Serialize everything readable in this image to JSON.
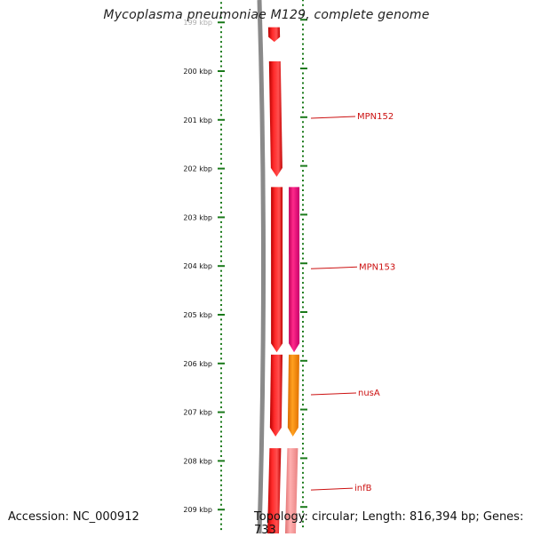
{
  "title": "Mycoplasma pneumoniae M129, complete genome",
  "accession": "Accession: NC_000912",
  "topology": "Topology: circular; Length: 816,394 bp; Genes: 733",
  "colors": {
    "backbone": "#8a8a8a",
    "tick": "#1a7a1a",
    "label": "#cc1111",
    "gene_red": "#ee1111",
    "gene_magenta": "#ee1177",
    "gene_orange": "#ff8800",
    "gene_pink": "#f08888"
  },
  "axis": {
    "unit": "kbp",
    "tick_labels": [
      "200 kbp",
      "201 kbp",
      "202 kbp",
      "203 kbp",
      "204 kbp",
      "205 kbp",
      "206 kbp",
      "207 kbp",
      "208 kbp",
      "209 kbp"
    ]
  },
  "genes": [
    {
      "label": "",
      "track": "inner",
      "color": "gene_red",
      "start_kbp": 199.1,
      "end_kbp": 199.4,
      "strand": "+"
    },
    {
      "label": "MPN152",
      "track": "inner",
      "color": "gene_red",
      "start_kbp": 199.8,
      "end_kbp": 202.17,
      "strand": "+"
    },
    {
      "label": "",
      "track": "inner",
      "color": "gene_red",
      "start_kbp": 202.38,
      "end_kbp": 205.77,
      "strand": "+"
    },
    {
      "label": "MPN153",
      "track": "outer",
      "color": "gene_magenta",
      "start_kbp": 202.38,
      "end_kbp": 205.77,
      "strand": "+"
    },
    {
      "label": "",
      "track": "inner",
      "color": "gene_red",
      "start_kbp": 205.82,
      "end_kbp": 207.5,
      "strand": "+"
    },
    {
      "label": "nusA",
      "track": "outer",
      "color": "gene_orange",
      "start_kbp": 205.82,
      "end_kbp": 207.5,
      "strand": "+"
    },
    {
      "label": "",
      "track": "inner",
      "color": "gene_red",
      "start_kbp": 207.74,
      "end_kbp": 209.6,
      "strand": "+"
    },
    {
      "label": "infB",
      "track": "outer",
      "color": "gene_pink",
      "start_kbp": 207.74,
      "end_kbp": 209.6,
      "strand": "+"
    }
  ]
}
